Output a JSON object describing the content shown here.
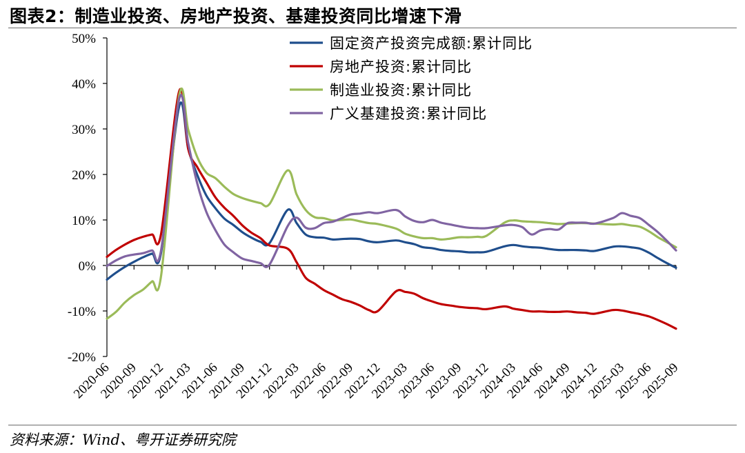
{
  "header": {
    "title": "图表2：制造业投资、房地产投资、基建投资同比增速下滑"
  },
  "footer": {
    "source": "资料来源：Wind、粤开证券研究院"
  },
  "chart_data": {
    "type": "line",
    "title": "图表2：制造业投资、房地产投资、基建投资同比增速下滑",
    "xlabel": "",
    "ylabel": "",
    "ylim": [
      -20,
      50
    ],
    "y_ticks": [
      -20,
      -10,
      0,
      10,
      20,
      30,
      40,
      50
    ],
    "y_tick_labels": [
      "-20%",
      "-10%",
      "0%",
      "10%",
      "20%",
      "30%",
      "40%",
      "50%"
    ],
    "x_tick_labels": [
      "2020-06",
      "2020-09",
      "2020-12",
      "2021-03",
      "2021-06",
      "2021-09",
      "2021-12",
      "2022-03",
      "2022-06",
      "2022-09",
      "2022-12",
      "2023-03",
      "2023-06",
      "2023-09",
      "2023-12",
      "2024-03",
      "2024-06",
      "2024-09",
      "2024-12",
      "2025-03",
      "2025-06",
      "2025-09"
    ],
    "grid": false,
    "legend_position": "top-right",
    "series": [
      {
        "name": "固定资产投资完成额:累计同比",
        "color": "#1f4e8c",
        "points": [
          [
            "2020-06",
            -3.1
          ],
          [
            "2020-07",
            -1.6
          ],
          [
            "2020-08",
            -0.3
          ],
          [
            "2020-09",
            0.8
          ],
          [
            "2020-10",
            1.8
          ],
          [
            "2020-11",
            2.6
          ],
          [
            "2020-12",
            2.9
          ],
          [
            "2021-02",
            35.0
          ],
          [
            "2021-03",
            25.6
          ],
          [
            "2021-04",
            19.9
          ],
          [
            "2021-05",
            15.4
          ],
          [
            "2021-06",
            12.6
          ],
          [
            "2021-07",
            10.3
          ],
          [
            "2021-08",
            8.9
          ],
          [
            "2021-09",
            7.3
          ],
          [
            "2021-10",
            6.1
          ],
          [
            "2021-11",
            5.2
          ],
          [
            "2021-12",
            4.9
          ],
          [
            "2022-02",
            12.2
          ],
          [
            "2022-03",
            9.3
          ],
          [
            "2022-04",
            6.8
          ],
          [
            "2022-05",
            6.2
          ],
          [
            "2022-06",
            6.1
          ],
          [
            "2022-07",
            5.7
          ],
          [
            "2022-08",
            5.8
          ],
          [
            "2022-09",
            5.9
          ],
          [
            "2022-10",
            5.8
          ],
          [
            "2022-11",
            5.3
          ],
          [
            "2022-12",
            5.1
          ],
          [
            "2023-02",
            5.5
          ],
          [
            "2023-03",
            5.1
          ],
          [
            "2023-04",
            4.7
          ],
          [
            "2023-05",
            4.0
          ],
          [
            "2023-06",
            3.8
          ],
          [
            "2023-07",
            3.4
          ],
          [
            "2023-08",
            3.2
          ],
          [
            "2023-09",
            3.1
          ],
          [
            "2023-10",
            2.9
          ],
          [
            "2023-11",
            2.9
          ],
          [
            "2023-12",
            3.0
          ],
          [
            "2024-02",
            4.2
          ],
          [
            "2024-03",
            4.5
          ],
          [
            "2024-04",
            4.2
          ],
          [
            "2024-05",
            4.0
          ],
          [
            "2024-06",
            3.9
          ],
          [
            "2024-07",
            3.6
          ],
          [
            "2024-08",
            3.4
          ],
          [
            "2024-09",
            3.4
          ],
          [
            "2024-10",
            3.4
          ],
          [
            "2024-11",
            3.3
          ],
          [
            "2024-12",
            3.2
          ],
          [
            "2025-02",
            4.1
          ],
          [
            "2025-03",
            4.2
          ],
          [
            "2025-04",
            4.0
          ],
          [
            "2025-05",
            3.7
          ],
          [
            "2025-06",
            2.8
          ],
          [
            "2025-07",
            1.6
          ],
          [
            "2025-08",
            0.5
          ],
          [
            "2025-09",
            -0.5
          ]
        ]
      },
      {
        "name": "房地产投资:累计同比",
        "color": "#c00000",
        "points": [
          [
            "2020-06",
            1.9
          ],
          [
            "2020-07",
            3.4
          ],
          [
            "2020-08",
            4.6
          ],
          [
            "2020-09",
            5.6
          ],
          [
            "2020-10",
            6.3
          ],
          [
            "2020-11",
            6.8
          ],
          [
            "2020-12",
            7.0
          ],
          [
            "2021-02",
            38.3
          ],
          [
            "2021-03",
            25.6
          ],
          [
            "2021-04",
            21.6
          ],
          [
            "2021-05",
            18.3
          ],
          [
            "2021-06",
            15.0
          ],
          [
            "2021-07",
            12.7
          ],
          [
            "2021-08",
            10.9
          ],
          [
            "2021-09",
            8.8
          ],
          [
            "2021-10",
            7.2
          ],
          [
            "2021-11",
            6.0
          ],
          [
            "2021-12",
            4.4
          ],
          [
            "2022-02",
            3.7
          ],
          [
            "2022-03",
            0.7
          ],
          [
            "2022-04",
            -2.7
          ],
          [
            "2022-05",
            -4.0
          ],
          [
            "2022-06",
            -5.4
          ],
          [
            "2022-07",
            -6.4
          ],
          [
            "2022-08",
            -7.4
          ],
          [
            "2022-09",
            -8.0
          ],
          [
            "2022-10",
            -8.8
          ],
          [
            "2022-11",
            -9.8
          ],
          [
            "2022-12",
            -10.0
          ],
          [
            "2023-02",
            -5.7
          ],
          [
            "2023-03",
            -5.8
          ],
          [
            "2023-04",
            -6.2
          ],
          [
            "2023-05",
            -7.2
          ],
          [
            "2023-06",
            -7.9
          ],
          [
            "2023-07",
            -8.5
          ],
          [
            "2023-08",
            -8.8
          ],
          [
            "2023-09",
            -9.1
          ],
          [
            "2023-10",
            -9.3
          ],
          [
            "2023-11",
            -9.4
          ],
          [
            "2023-12",
            -9.6
          ],
          [
            "2024-02",
            -9.0
          ],
          [
            "2024-03",
            -9.5
          ],
          [
            "2024-04",
            -9.8
          ],
          [
            "2024-05",
            -10.1
          ],
          [
            "2024-06",
            -10.1
          ],
          [
            "2024-07",
            -10.2
          ],
          [
            "2024-08",
            -10.2
          ],
          [
            "2024-09",
            -10.1
          ],
          [
            "2024-10",
            -10.3
          ],
          [
            "2024-11",
            -10.4
          ],
          [
            "2024-12",
            -10.6
          ],
          [
            "2025-02",
            -9.8
          ],
          [
            "2025-03",
            -9.9
          ],
          [
            "2025-04",
            -10.3
          ],
          [
            "2025-05",
            -10.7
          ],
          [
            "2025-06",
            -11.2
          ],
          [
            "2025-07",
            -12.0
          ],
          [
            "2025-08",
            -12.9
          ],
          [
            "2025-09",
            -13.9
          ]
        ]
      },
      {
        "name": "制造业投资:累计同比",
        "color": "#9bbb59",
        "points": [
          [
            "2020-06",
            -11.7
          ],
          [
            "2020-07",
            -10.2
          ],
          [
            "2020-08",
            -8.1
          ],
          [
            "2020-09",
            -6.5
          ],
          [
            "2020-10",
            -5.3
          ],
          [
            "2020-11",
            -3.5
          ],
          [
            "2020-12",
            -2.2
          ],
          [
            "2021-02",
            37.4
          ],
          [
            "2021-03",
            29.8
          ],
          [
            "2021-04",
            23.8
          ],
          [
            "2021-05",
            20.4
          ],
          [
            "2021-06",
            19.2
          ],
          [
            "2021-07",
            17.3
          ],
          [
            "2021-08",
            15.7
          ],
          [
            "2021-09",
            14.8
          ],
          [
            "2021-10",
            14.2
          ],
          [
            "2021-11",
            13.7
          ],
          [
            "2021-12",
            13.5
          ],
          [
            "2022-02",
            20.9
          ],
          [
            "2022-03",
            15.6
          ],
          [
            "2022-04",
            12.2
          ],
          [
            "2022-05",
            10.6
          ],
          [
            "2022-06",
            10.4
          ],
          [
            "2022-07",
            9.9
          ],
          [
            "2022-08",
            10.0
          ],
          [
            "2022-09",
            10.1
          ],
          [
            "2022-10",
            9.7
          ],
          [
            "2022-11",
            9.3
          ],
          [
            "2022-12",
            9.1
          ],
          [
            "2023-02",
            8.1
          ],
          [
            "2023-03",
            7.0
          ],
          [
            "2023-04",
            6.4
          ],
          [
            "2023-05",
            6.0
          ],
          [
            "2023-06",
            6.0
          ],
          [
            "2023-07",
            5.7
          ],
          [
            "2023-08",
            5.9
          ],
          [
            "2023-09",
            6.2
          ],
          [
            "2023-10",
            6.2
          ],
          [
            "2023-11",
            6.3
          ],
          [
            "2023-12",
            6.5
          ],
          [
            "2024-02",
            9.4
          ],
          [
            "2024-03",
            9.9
          ],
          [
            "2024-04",
            9.7
          ],
          [
            "2024-05",
            9.6
          ],
          [
            "2024-06",
            9.5
          ],
          [
            "2024-07",
            9.3
          ],
          [
            "2024-08",
            9.1
          ],
          [
            "2024-09",
            9.2
          ],
          [
            "2024-10",
            9.3
          ],
          [
            "2024-11",
            9.3
          ],
          [
            "2024-12",
            9.2
          ],
          [
            "2025-02",
            9.0
          ],
          [
            "2025-03",
            9.1
          ],
          [
            "2025-04",
            8.8
          ],
          [
            "2025-05",
            8.5
          ],
          [
            "2025-06",
            7.5
          ],
          [
            "2025-07",
            6.2
          ],
          [
            "2025-08",
            5.1
          ],
          [
            "2025-09",
            4.0
          ]
        ]
      },
      {
        "name": "广义基建投资:累计同比",
        "color": "#8064a2",
        "points": [
          [
            "2020-06",
            -0.1
          ],
          [
            "2020-07",
            1.1
          ],
          [
            "2020-08",
            2.0
          ],
          [
            "2020-09",
            2.4
          ],
          [
            "2020-10",
            2.7
          ],
          [
            "2020-11",
            3.3
          ],
          [
            "2020-12",
            3.4
          ],
          [
            "2021-02",
            36.6
          ],
          [
            "2021-03",
            26.8
          ],
          [
            "2021-04",
            18.0
          ],
          [
            "2021-05",
            11.8
          ],
          [
            "2021-06",
            7.8
          ],
          [
            "2021-07",
            4.6
          ],
          [
            "2021-08",
            2.9
          ],
          [
            "2021-09",
            1.5
          ],
          [
            "2021-10",
            1.0
          ],
          [
            "2021-11",
            0.5
          ],
          [
            "2021-12",
            0.2
          ],
          [
            "2022-02",
            8.6
          ],
          [
            "2022-03",
            10.5
          ],
          [
            "2022-04",
            8.3
          ],
          [
            "2022-05",
            8.2
          ],
          [
            "2022-06",
            9.3
          ],
          [
            "2022-07",
            9.6
          ],
          [
            "2022-08",
            10.4
          ],
          [
            "2022-09",
            11.2
          ],
          [
            "2022-10",
            11.4
          ],
          [
            "2022-11",
            11.7
          ],
          [
            "2022-12",
            11.5
          ],
          [
            "2023-02",
            12.2
          ],
          [
            "2023-03",
            10.8
          ],
          [
            "2023-04",
            9.8
          ],
          [
            "2023-05",
            9.5
          ],
          [
            "2023-06",
            10.0
          ],
          [
            "2023-07",
            9.4
          ],
          [
            "2023-08",
            9.0
          ],
          [
            "2023-09",
            8.6
          ],
          [
            "2023-10",
            8.3
          ],
          [
            "2023-11",
            8.2
          ],
          [
            "2023-12",
            8.2
          ],
          [
            "2024-02",
            8.8
          ],
          [
            "2024-03",
            8.9
          ],
          [
            "2024-04",
            8.4
          ],
          [
            "2024-05",
            6.8
          ],
          [
            "2024-06",
            7.7
          ],
          [
            "2024-07",
            8.0
          ],
          [
            "2024-08",
            7.9
          ],
          [
            "2024-09",
            9.3
          ],
          [
            "2024-10",
            9.4
          ],
          [
            "2024-11",
            9.4
          ],
          [
            "2024-12",
            9.2
          ],
          [
            "2025-02",
            10.4
          ],
          [
            "2025-03",
            11.5
          ],
          [
            "2025-04",
            10.9
          ],
          [
            "2025-05",
            10.4
          ],
          [
            "2025-06",
            8.9
          ],
          [
            "2025-07",
            7.3
          ],
          [
            "2025-08",
            5.4
          ],
          [
            "2025-09",
            3.3
          ]
        ]
      }
    ]
  }
}
